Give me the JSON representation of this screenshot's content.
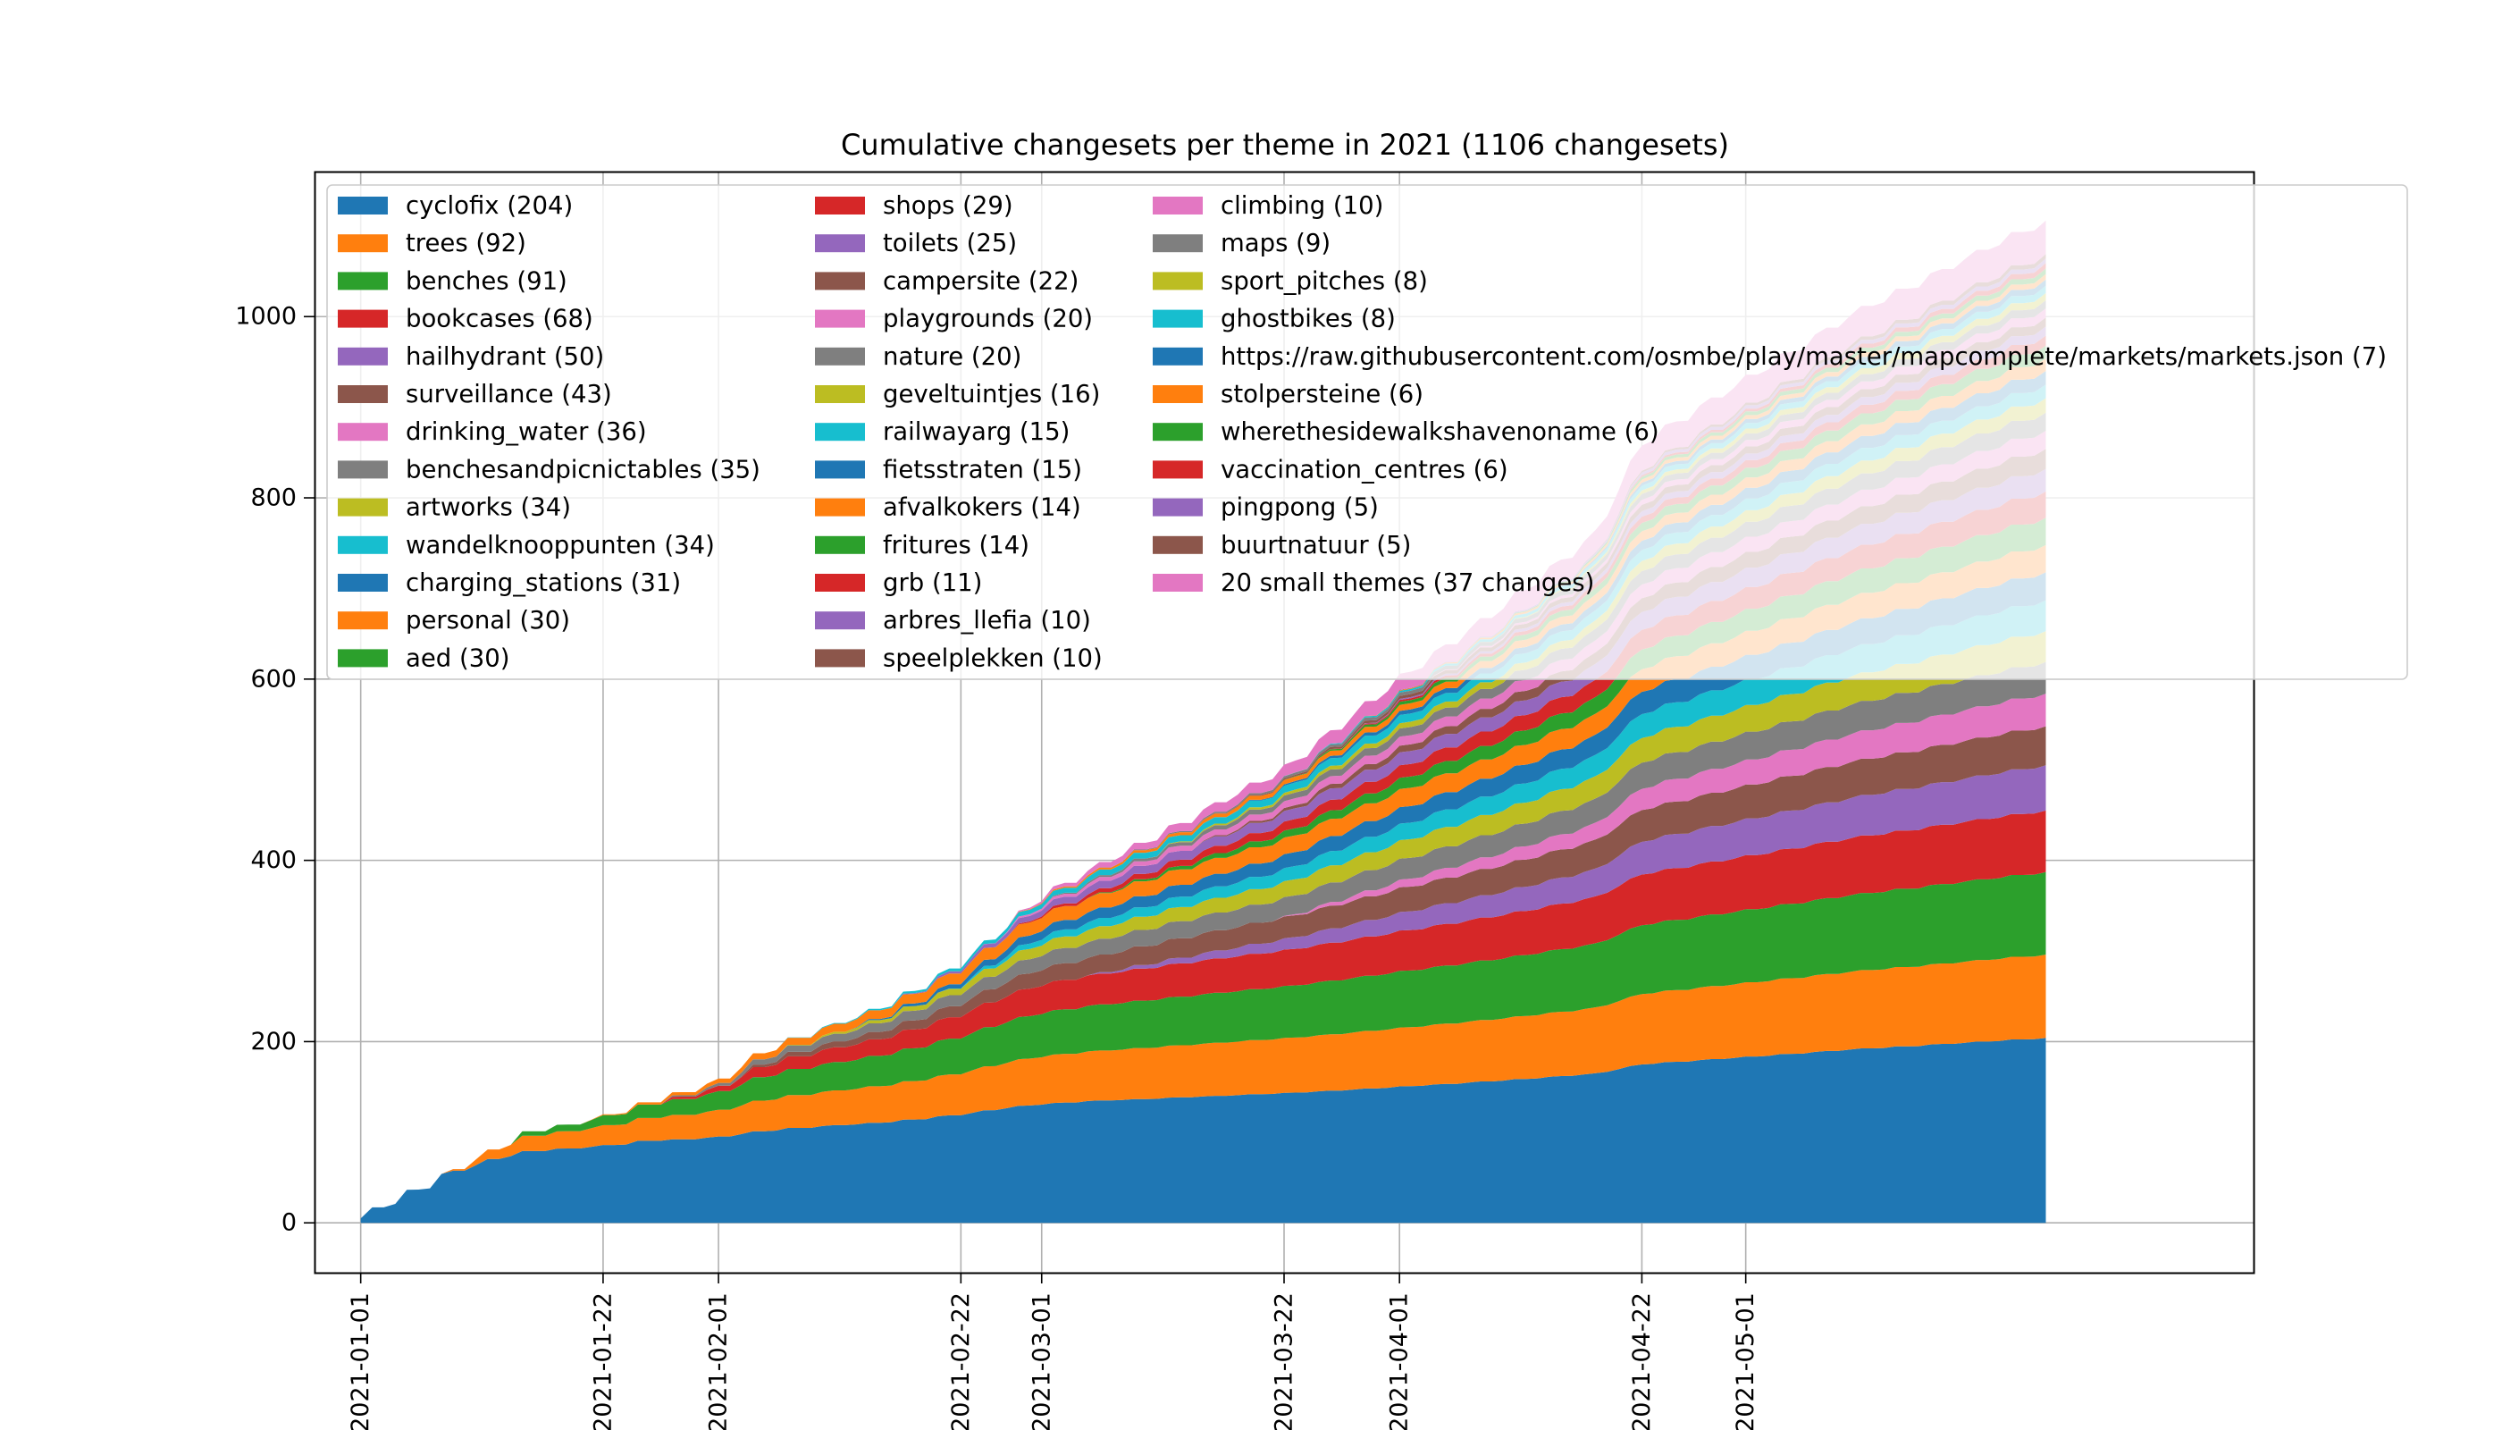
{
  "chart_data": {
    "type": "area",
    "stacked": true,
    "title": "Cumulative changesets per theme in 2021 (1106 changesets)",
    "xlabel": "",
    "ylabel": "",
    "grid": true,
    "legend_position": "top-left",
    "legend_columns": 3,
    "x_range": [
      "2020-12-28",
      "2021-06-14"
    ],
    "data_x_range": [
      "2021-01-01",
      "2021-05-27"
    ],
    "ylim": [
      -55,
      1160
    ],
    "x_ticks": [
      "2021-01-01",
      "2021-01-22",
      "2021-02-01",
      "2021-02-22",
      "2021-03-01",
      "2021-03-22",
      "2021-04-01",
      "2021-04-22",
      "2021-05-01"
    ],
    "y_ticks": [
      0,
      200,
      400,
      600,
      800,
      1000
    ],
    "total_curve": {
      "x": [
        "2021-01-01",
        "2021-01-15",
        "2021-01-22",
        "2021-02-01",
        "2021-02-05",
        "2021-02-15",
        "2021-02-22",
        "2021-03-01",
        "2021-03-10",
        "2021-03-22",
        "2021-04-01",
        "2021-04-10",
        "2021-04-18",
        "2021-04-22",
        "2021-05-01",
        "2021-05-10",
        "2021-05-27"
      ],
      "y": [
        5,
        95,
        115,
        155,
        190,
        235,
        285,
        360,
        420,
        500,
        600,
        680,
        760,
        860,
        930,
        1000,
        1106
      ]
    },
    "series": [
      {
        "name": "cyclofix (204)",
        "total": 204,
        "color": "#1f77b4"
      },
      {
        "name": "trees (92)",
        "total": 92,
        "color": "#ff7f0e"
      },
      {
        "name": "benches (91)",
        "total": 91,
        "color": "#2ca02c"
      },
      {
        "name": "bookcases (68)",
        "total": 68,
        "color": "#d62728"
      },
      {
        "name": "hailhydrant (50)",
        "total": 50,
        "color": "#9467bd"
      },
      {
        "name": "surveillance (43)",
        "total": 43,
        "color": "#8c564b"
      },
      {
        "name": "drinking_water (36)",
        "total": 36,
        "color": "#e377c2"
      },
      {
        "name": "benchesandpicnictables (35)",
        "total": 35,
        "color": "#7f7f7f"
      },
      {
        "name": "artworks (34)",
        "total": 34,
        "color": "#bcbd22"
      },
      {
        "name": "wandelknooppunten (34)",
        "total": 34,
        "color": "#17becf"
      },
      {
        "name": "charging_stations (31)",
        "total": 31,
        "color": "#1f77b4"
      },
      {
        "name": "personal (30)",
        "total": 30,
        "color": "#ff7f0e"
      },
      {
        "name": "aed (30)",
        "total": 30,
        "color": "#2ca02c"
      },
      {
        "name": "shops (29)",
        "total": 29,
        "color": "#d62728"
      },
      {
        "name": "toilets (25)",
        "total": 25,
        "color": "#9467bd"
      },
      {
        "name": "campersite (22)",
        "total": 22,
        "color": "#8c564b"
      },
      {
        "name": "playgrounds (20)",
        "total": 20,
        "color": "#e377c2"
      },
      {
        "name": "nature (20)",
        "total": 20,
        "color": "#7f7f7f"
      },
      {
        "name": "geveltuintjes (16)",
        "total": 16,
        "color": "#bcbd22"
      },
      {
        "name": "railwayarg (15)",
        "total": 15,
        "color": "#17becf"
      },
      {
        "name": "fietsstraten (15)",
        "total": 15,
        "color": "#1f77b4"
      },
      {
        "name": "afvalkokers (14)",
        "total": 14,
        "color": "#ff7f0e"
      },
      {
        "name": "fritures (14)",
        "total": 14,
        "color": "#2ca02c"
      },
      {
        "name": "grb (11)",
        "total": 11,
        "color": "#d62728"
      },
      {
        "name": "arbres_llefia (10)",
        "total": 10,
        "color": "#9467bd"
      },
      {
        "name": "speelplekken (10)",
        "total": 10,
        "color": "#8c564b"
      },
      {
        "name": "climbing (10)",
        "total": 10,
        "color": "#e377c2"
      },
      {
        "name": "maps (9)",
        "total": 9,
        "color": "#7f7f7f"
      },
      {
        "name": "sport_pitches (8)",
        "total": 8,
        "color": "#bcbd22"
      },
      {
        "name": "ghostbikes (8)",
        "total": 8,
        "color": "#17becf"
      },
      {
        "name": "https://raw.githubusercontent.com/osmbe/play/master/mapcomplete/markets/markets.json (7)",
        "total": 7,
        "color": "#1f77b4"
      },
      {
        "name": "stolpersteine (6)",
        "total": 6,
        "color": "#ff7f0e"
      },
      {
        "name": "wherethesidewalkshavenoname (6)",
        "total": 6,
        "color": "#2ca02c"
      },
      {
        "name": "vaccination_centres (6)",
        "total": 6,
        "color": "#d62728"
      },
      {
        "name": "pingpong (5)",
        "total": 5,
        "color": "#9467bd"
      },
      {
        "name": "buurtnatuur (5)",
        "total": 5,
        "color": "#8c564b"
      },
      {
        "name": "20 small themes (37 changes)",
        "total": 37,
        "color": "#e377c2"
      }
    ]
  }
}
